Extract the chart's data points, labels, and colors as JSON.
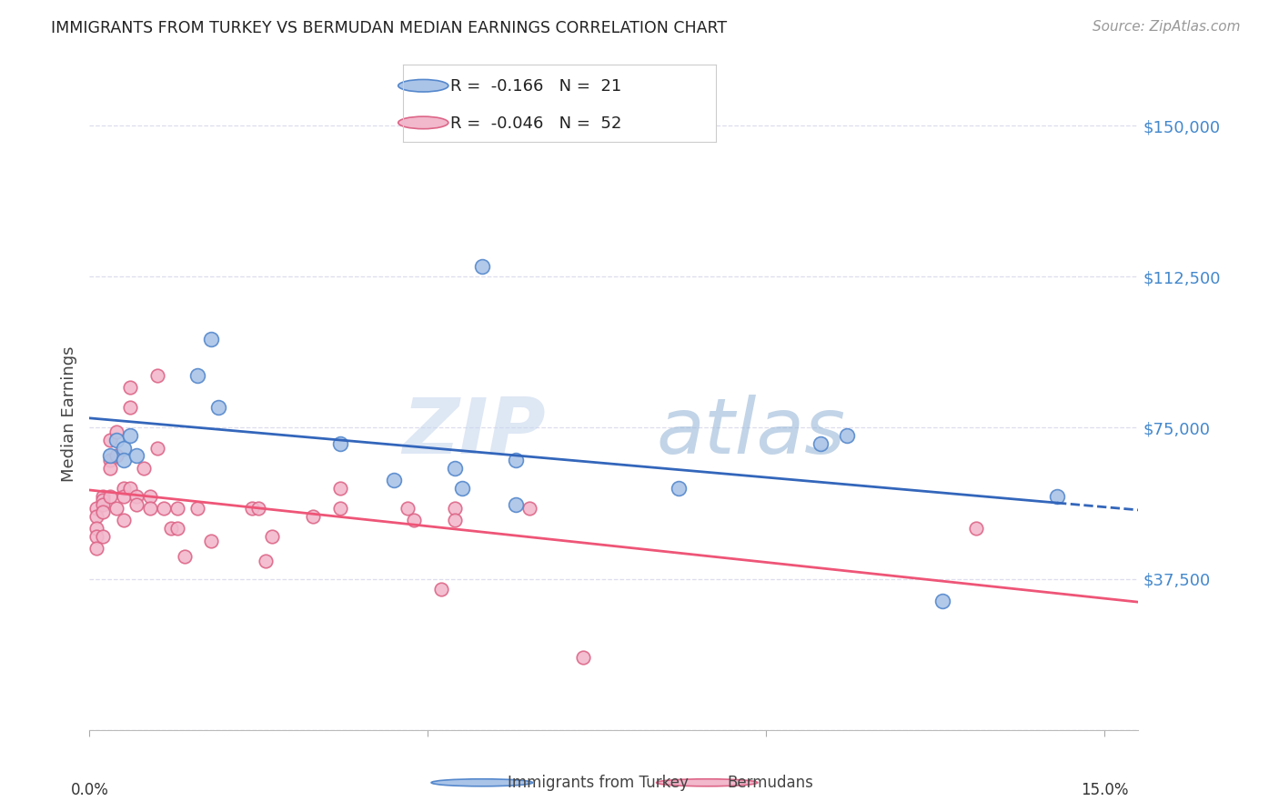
{
  "title": "IMMIGRANTS FROM TURKEY VS BERMUDAN MEDIAN EARNINGS CORRELATION CHART",
  "source": "Source: ZipAtlas.com",
  "ylabel": "Median Earnings",
  "yticks": [
    0,
    37500,
    75000,
    112500,
    150000
  ],
  "ytick_labels": [
    "",
    "$37,500",
    "$75,000",
    "$112,500",
    "$150,000"
  ],
  "xlim": [
    0.0,
    0.155
  ],
  "ylim": [
    0,
    157000
  ],
  "legend_blue_R": "-0.166",
  "legend_blue_N": "21",
  "legend_pink_R": "-0.046",
  "legend_pink_N": "52",
  "blue_fill_color": "#aac4e8",
  "pink_fill_color": "#f2b8cc",
  "blue_edge_color": "#5588cc",
  "pink_edge_color": "#dd6688",
  "blue_line_color": "#3366bb",
  "pink_line_color": "#ee5577",
  "grid_color": "#ddddee",
  "watermark_zip": "ZIP",
  "watermark_atlas": "atlas",
  "blue_x": [
    0.003,
    0.004,
    0.005,
    0.005,
    0.006,
    0.007,
    0.016,
    0.018,
    0.019,
    0.037,
    0.045,
    0.054,
    0.055,
    0.058,
    0.063,
    0.063,
    0.087,
    0.108,
    0.112,
    0.126,
    0.143
  ],
  "blue_y": [
    68000,
    72000,
    70000,
    67000,
    73000,
    68000,
    88000,
    97000,
    80000,
    71000,
    62000,
    65000,
    60000,
    115000,
    67000,
    56000,
    60000,
    71000,
    73000,
    32000,
    58000
  ],
  "pink_x": [
    0.001,
    0.001,
    0.001,
    0.001,
    0.001,
    0.002,
    0.002,
    0.002,
    0.002,
    0.002,
    0.003,
    0.003,
    0.003,
    0.003,
    0.004,
    0.004,
    0.004,
    0.005,
    0.005,
    0.005,
    0.006,
    0.006,
    0.006,
    0.007,
    0.007,
    0.008,
    0.009,
    0.009,
    0.01,
    0.01,
    0.011,
    0.012,
    0.013,
    0.013,
    0.014,
    0.016,
    0.018,
    0.024,
    0.025,
    0.026,
    0.027,
    0.033,
    0.037,
    0.037,
    0.047,
    0.048,
    0.052,
    0.054,
    0.054,
    0.065,
    0.073,
    0.131
  ],
  "pink_y": [
    55000,
    53000,
    50000,
    48000,
    45000,
    58000,
    57000,
    56000,
    54000,
    48000,
    72000,
    67000,
    65000,
    58000,
    74000,
    68000,
    55000,
    60000,
    58000,
    52000,
    85000,
    80000,
    60000,
    58000,
    56000,
    65000,
    58000,
    55000,
    88000,
    70000,
    55000,
    50000,
    55000,
    50000,
    43000,
    55000,
    47000,
    55000,
    55000,
    42000,
    48000,
    53000,
    60000,
    55000,
    55000,
    52000,
    35000,
    55000,
    52000,
    55000,
    18000,
    50000
  ]
}
